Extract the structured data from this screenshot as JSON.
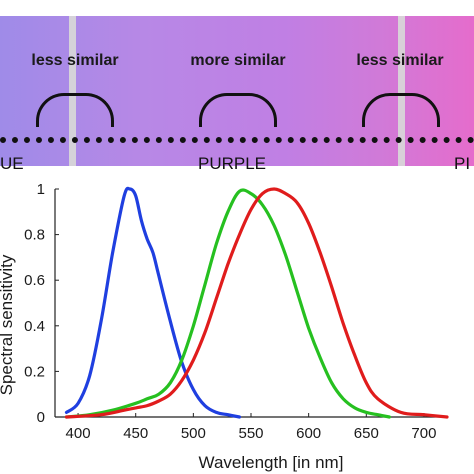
{
  "band": {
    "labels": {
      "left": "less similar",
      "center": "more similar",
      "right": "less similar"
    },
    "regions": {
      "left": "UE",
      "center": "PURPLE",
      "right": "PI"
    }
  },
  "chart_data": {
    "type": "line",
    "xlabel": "Wavelength [in nm]",
    "ylabel": "Spectral sensitivity",
    "xlim": [
      380,
      720
    ],
    "ylim": [
      0,
      1
    ],
    "x_ticks": [
      400,
      450,
      500,
      550,
      600,
      650,
      700
    ],
    "y_ticks": [
      0,
      0.2,
      0.4,
      0.6,
      0.8,
      1
    ],
    "grid": false,
    "series": [
      {
        "color": "#1f3fe0",
        "x": [
          390,
          400,
          410,
          420,
          430,
          440,
          445,
          450,
          455,
          460,
          465,
          470,
          480,
          490,
          500,
          510,
          520,
          530,
          540
        ],
        "y": [
          0.02,
          0.06,
          0.18,
          0.42,
          0.72,
          0.97,
          1.0,
          0.97,
          0.86,
          0.78,
          0.72,
          0.62,
          0.42,
          0.24,
          0.12,
          0.05,
          0.02,
          0.01,
          0.0
        ]
      },
      {
        "color": "#26c020",
        "x": [
          390,
          410,
          430,
          450,
          460,
          470,
          480,
          490,
          500,
          510,
          520,
          530,
          540,
          550,
          560,
          570,
          580,
          590,
          600,
          610,
          620,
          630,
          640,
          650,
          660,
          670
        ],
        "y": [
          0.0,
          0.01,
          0.03,
          0.06,
          0.08,
          0.1,
          0.15,
          0.25,
          0.4,
          0.58,
          0.76,
          0.9,
          0.99,
          0.98,
          0.93,
          0.84,
          0.71,
          0.55,
          0.39,
          0.26,
          0.15,
          0.08,
          0.04,
          0.02,
          0.01,
          0.0
        ]
      },
      {
        "color": "#e01c1c",
        "x": [
          390,
          420,
          440,
          450,
          460,
          470,
          480,
          490,
          500,
          510,
          520,
          530,
          540,
          550,
          560,
          570,
          580,
          590,
          600,
          610,
          620,
          630,
          640,
          650,
          660,
          680,
          700,
          720
        ],
        "y": [
          0.0,
          0.01,
          0.03,
          0.04,
          0.05,
          0.07,
          0.1,
          0.16,
          0.25,
          0.37,
          0.52,
          0.67,
          0.8,
          0.91,
          0.98,
          1.0,
          0.98,
          0.94,
          0.85,
          0.72,
          0.57,
          0.41,
          0.27,
          0.15,
          0.08,
          0.02,
          0.01,
          0.0
        ]
      }
    ]
  }
}
